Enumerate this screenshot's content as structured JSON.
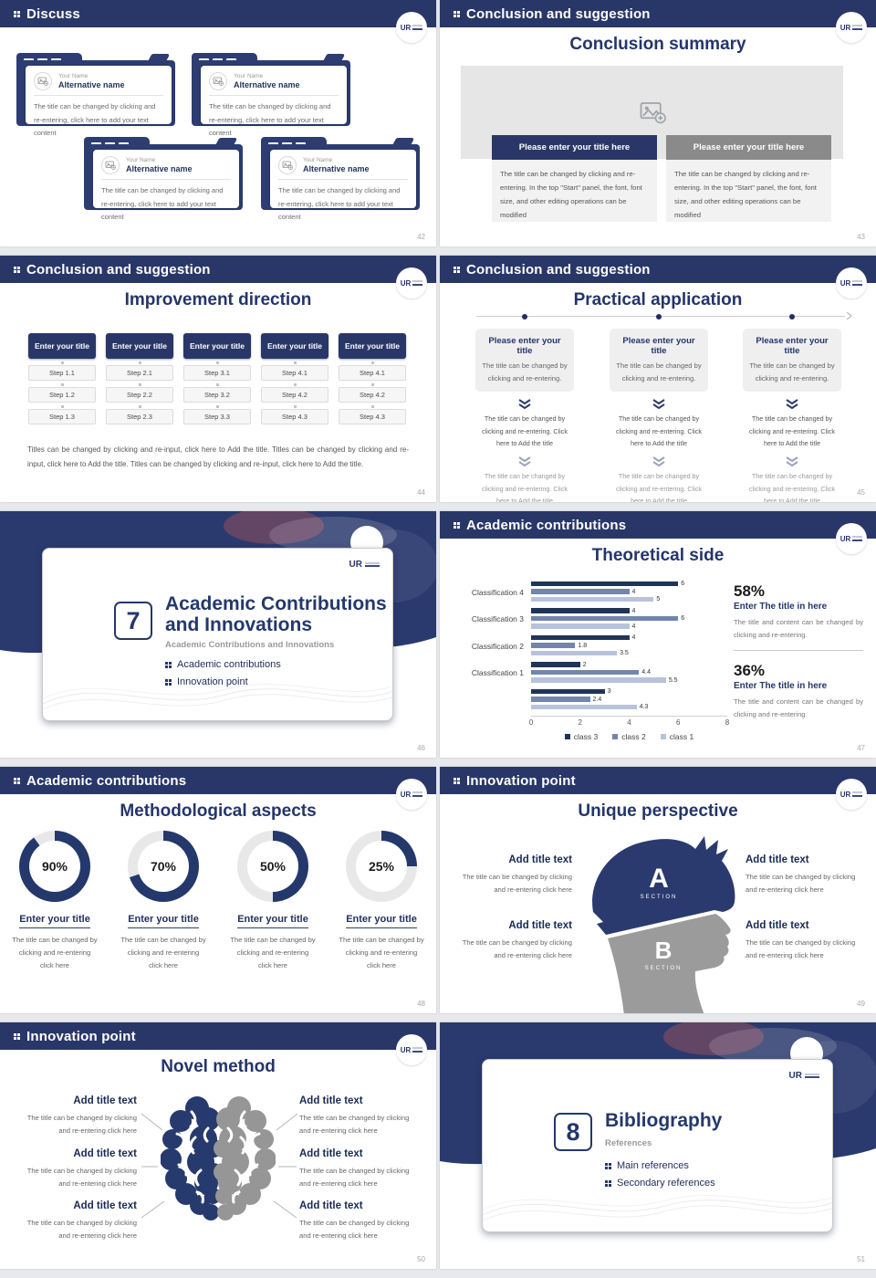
{
  "ui": {
    "logo_monogram": "UR"
  },
  "colors": {
    "navy": "#293768",
    "navy_dark": "#24386b",
    "banner_gray": "#8a8a8a",
    "donut_track": "#e8e8e8",
    "bar_class3": "#1f3459",
    "bar_class2": "#7385ad",
    "bar_class1": "#b7c3da",
    "head_gray": "#9b9b9b"
  },
  "slides": {
    "discuss": {
      "header": "Discuss",
      "page": "42",
      "cards": [
        {
          "name_label": "Your Name",
          "title": "Alternative name",
          "body": "The title can be changed by clicking and re-entering, click here to add your text content"
        },
        {
          "name_label": "Your Name",
          "title": "Alternative name",
          "body": "The title can be changed by clicking and re-entering, click here to add your text content"
        },
        {
          "name_label": "Your Name",
          "title": "Alternative name",
          "body": "The title can be changed by clicking and re-entering, click here to add your text content"
        },
        {
          "name_label": "Your Name",
          "title": "Alternative name",
          "body": "The title can be changed by clicking and re-entering, click here to add your text content"
        }
      ]
    },
    "summary": {
      "header": "Conclusion and suggestion",
      "page": "43",
      "title": "Conclusion summary",
      "columns": [
        {
          "banner": "Please enter your title here",
          "body": "The title can be changed by clicking and re-entering. In the top \"Start\" panel, the font, font size, and other editing operations can be modified"
        },
        {
          "banner": "Please enter your title here",
          "body": "The title can be changed by clicking and re-entering. In the top \"Start\" panel, the font, font size, and other editing operations can be modified"
        }
      ]
    },
    "improvement": {
      "header": "Conclusion and suggestion",
      "page": "44",
      "title": "Improvement direction",
      "columns": [
        {
          "title": "Enter your title",
          "steps": [
            "Step 1.1",
            "Step 1.2",
            "Step 1.3"
          ]
        },
        {
          "title": "Enter your title",
          "steps": [
            "Step 2.1",
            "Step 2.2",
            "Step 2.3"
          ]
        },
        {
          "title": "Enter your title",
          "steps": [
            "Step 3.1",
            "Step 3.2",
            "Step 3.3"
          ]
        },
        {
          "title": "Enter your title",
          "steps": [
            "Step 4.1",
            "Step 4.2",
            "Step 4.3"
          ]
        },
        {
          "title": "Enter your title",
          "steps": [
            "Step 4.1",
            "Step 4.2",
            "Step 4.3"
          ]
        }
      ],
      "footer": "Titles can be changed by clicking and re-input, click here to Add the title. Titles can be changed by clicking and re-input, click here to Add the title. Titles can be changed by clicking and re-input, click here to Add the title."
    },
    "practical": {
      "header": "Conclusion and suggestion",
      "page": "45",
      "title": "Practical application",
      "columns": [
        {
          "card_title": "Please enter your title",
          "card_body": "The title can be changed by clicking and re-entering.",
          "step1": "The title can be changed by clicking and re-entering. Click here to Add the title",
          "step2": "The title can be changed by clicking and re-entering. Click here to Add the title"
        },
        {
          "card_title": "Please enter your title",
          "card_body": "The title can be changed by clicking and re-entering.",
          "step1": "The title can be changed by clicking and re-entering. Click here to Add the title",
          "step2": "The title can be changed by clicking and re-entering. Click here to Add the title"
        },
        {
          "card_title": "Please enter your title",
          "card_body": "The title can be changed by clicking and re-entering.",
          "step1": "The title can be changed by clicking and re-entering. Click here to Add the title",
          "step2": "The title can be changed by clicking and re-entering. Click here to Add the title"
        }
      ]
    },
    "section7": {
      "page": "46",
      "number": "7",
      "title": "Academic Contributions and Innovations",
      "subtitle": "Academic Contributions and Innovations",
      "bullets": [
        "Academic contributions",
        "Innovation point"
      ]
    },
    "theoretical": {
      "header": "Academic contributions",
      "page": "47",
      "title": "Theoretical side",
      "chart_data": {
        "type": "bar",
        "orientation": "horizontal",
        "title": "Theoretical side",
        "categories": [
          "Classification 4",
          "Classification 3",
          "Classification 2",
          "Classification 1",
          ""
        ],
        "series": [
          {
            "name": "class 3",
            "color": "#1f3459",
            "values": [
              6,
              4,
              4,
              2,
              3
            ]
          },
          {
            "name": "class 2",
            "color": "#7385ad",
            "values": [
              4,
              6,
              1.8,
              4.4,
              2.4
            ]
          },
          {
            "name": "class 1",
            "color": "#b7c3da",
            "values": [
              5,
              4,
              3.5,
              5.5,
              4.3
            ]
          }
        ],
        "xlim": [
          0,
          8
        ],
        "x_ticks": [
          0,
          2,
          4,
          6,
          8
        ],
        "grid": false,
        "legend_position": "bottom"
      },
      "stats": [
        {
          "pct": "58%",
          "title": "Enter The title in here",
          "body": "The title and content can be changed by clicking and re-entering."
        },
        {
          "pct": "36%",
          "title": "Enter The title in here",
          "body": "The title and content can be changed by clicking and re-entering."
        }
      ]
    },
    "method": {
      "header": "Academic contributions",
      "page": "48",
      "title": "Methodological aspects",
      "donuts": [
        {
          "pct": 90,
          "label": "90%",
          "title": "Enter your title",
          "body": "The title can be changed by clicking and re-entering click here"
        },
        {
          "pct": 70,
          "label": "70%",
          "title": "Enter your title",
          "body": "The title can be changed by clicking and re-entering click here"
        },
        {
          "pct": 50,
          "label": "50%",
          "title": "Enter your title",
          "body": "The title can be changed by clicking and re-entering click here"
        },
        {
          "pct": 25,
          "label": "25%",
          "title": "Enter your title",
          "body": "The title can be changed by clicking and re-entering click here"
        }
      ]
    },
    "perspective": {
      "header": "Innovation point",
      "page": "49",
      "title": "Unique perspective",
      "sections": [
        {
          "letter": "A",
          "caption": "SECTION"
        },
        {
          "letter": "B",
          "caption": "SECTION"
        }
      ],
      "items": [
        {
          "title": "Add title text",
          "body": "The title can be changed by clicking and re-entering click here"
        },
        {
          "title": "Add title text",
          "body": "The title can be changed by clicking and re-entering click here"
        },
        {
          "title": "Add title text",
          "body": "The title can be changed by clicking and re-entering click here"
        },
        {
          "title": "Add title text",
          "body": "The title can be changed by clicking and re-entering click here"
        }
      ]
    },
    "novel": {
      "header": "Innovation point",
      "page": "50",
      "title": "Novel method",
      "items": [
        {
          "title": "Add title text",
          "body": "The title can be changed by clicking and re-entering click here"
        },
        {
          "title": "Add title text",
          "body": "The title can be changed by clicking and re-entering click here"
        },
        {
          "title": "Add title text",
          "body": "The title can be changed by clicking and re-entering click here"
        },
        {
          "title": "Add title text",
          "body": "The title can be changed by clicking and re-entering click here"
        },
        {
          "title": "Add title text",
          "body": "The title can be changed by clicking and re-entering click here"
        },
        {
          "title": "Add title text",
          "body": "The title can be changed by clicking and re-entering click here"
        }
      ]
    },
    "bibliography": {
      "page": "51",
      "number": "8",
      "title": "Bibliography",
      "subtitle": "References",
      "bullets": [
        "Main references",
        "Secondary references"
      ]
    }
  }
}
